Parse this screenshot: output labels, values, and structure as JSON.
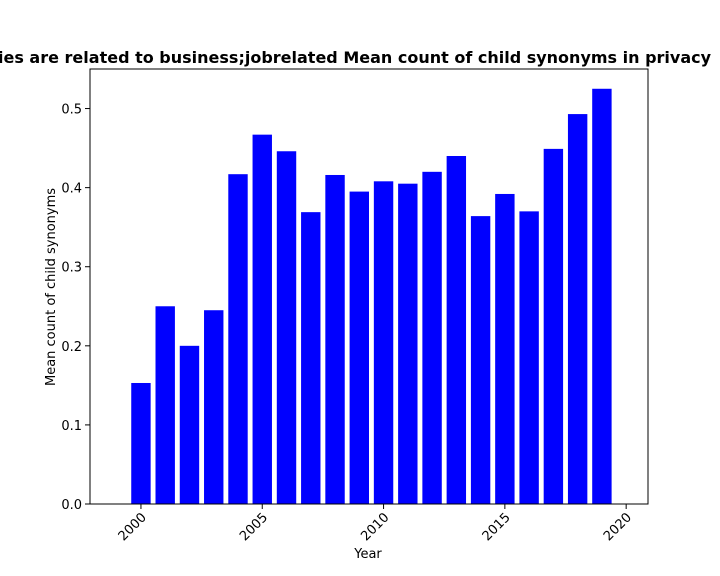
{
  "chart_data": {
    "type": "bar",
    "title": "ies are related to business;jobrelated Mean count of child synonyms in privacy",
    "xlabel": "Year",
    "ylabel": "Mean count of child synonyms",
    "x": [
      2000,
      2001,
      2002,
      2003,
      2004,
      2005,
      2006,
      2007,
      2008,
      2009,
      2010,
      2011,
      2012,
      2013,
      2014,
      2015,
      2016,
      2017,
      2018,
      2019
    ],
    "values": [
      0.153,
      0.25,
      0.2,
      0.245,
      0.417,
      0.467,
      0.446,
      0.369,
      0.416,
      0.395,
      0.408,
      0.405,
      0.42,
      0.44,
      0.364,
      0.392,
      0.37,
      0.449,
      0.493,
      0.525
    ],
    "xlim": [
      1997.9,
      2020.9
    ],
    "ylim": [
      0,
      0.55
    ],
    "xticks": [
      "2000",
      "2005",
      "2010",
      "2015",
      "2020"
    ],
    "yticks": [
      "0.0",
      "0.1",
      "0.2",
      "0.3",
      "0.4",
      "0.5"
    ],
    "bar_color": "#0000ff",
    "grid": false,
    "legend": "none"
  }
}
